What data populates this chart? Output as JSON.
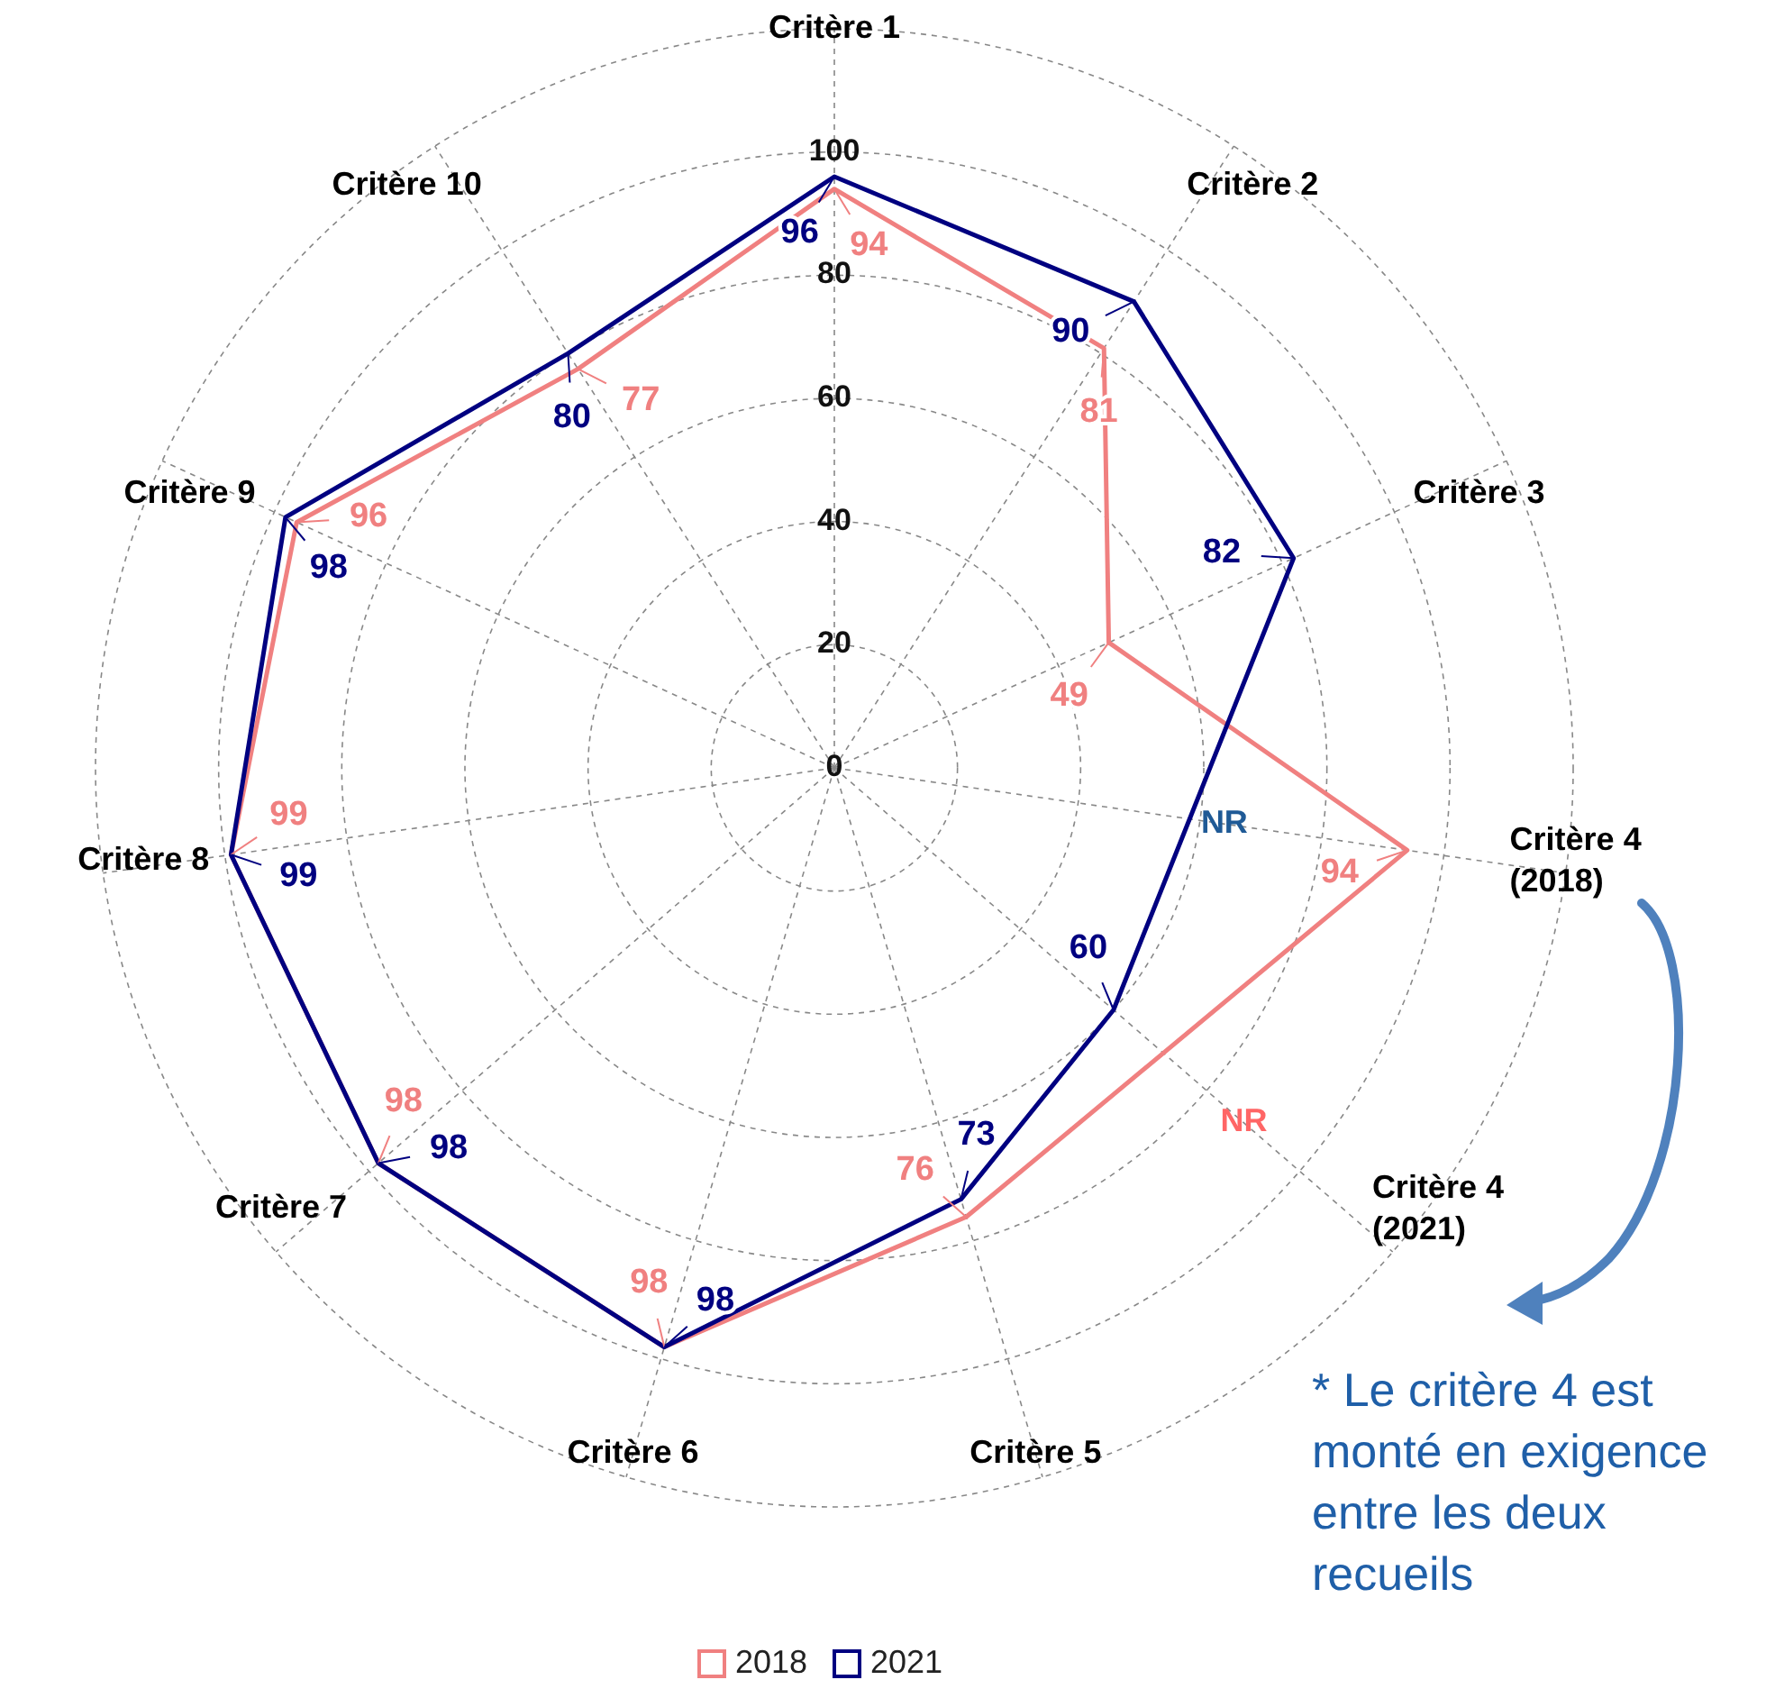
{
  "chart_data": {
    "type": "radar",
    "categories": [
      "Critère 1",
      "Critère 2",
      "Critère 3",
      "Critère 4\n(2018)",
      "Critère 4\n(2021)",
      "Critère 5",
      "Critère 6",
      "Critère 7",
      "Critère 8",
      "Critère 9",
      "Critère 10"
    ],
    "series": [
      {
        "name": "2018",
        "color": "#f08080",
        "values": [
          94,
          81,
          49,
          94,
          null,
          76,
          98,
          98,
          99,
          96,
          77
        ],
        "value_labels": [
          "94",
          "81",
          "49",
          "94",
          "NR",
          "76",
          "98",
          "98",
          "99",
          "96",
          "77"
        ]
      },
      {
        "name": "2021",
        "color": "#000080",
        "values": [
          96,
          90,
          82,
          null,
          60,
          73,
          98,
          98,
          99,
          98,
          80
        ],
        "value_labels": [
          "96",
          "90",
          "82",
          "NR",
          "60",
          "73",
          "98",
          "98",
          "99",
          "98",
          "80"
        ]
      }
    ],
    "ylim": [
      0,
      120
    ],
    "yticks": [
      0,
      20,
      40,
      60,
      80,
      100
    ],
    "grid": true,
    "legend": "bottom",
    "marker": "none",
    "line_style": "solid",
    "annotations": [
      "* Le critère 4 est monté en exigence entre les deux recueils"
    ]
  }
}
